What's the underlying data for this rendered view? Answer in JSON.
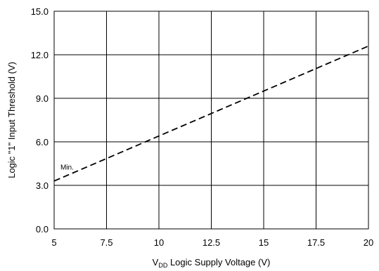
{
  "chart_data": {
    "type": "line",
    "xlabel_main": "V",
    "xlabel_sub": "DD",
    "xlabel_rest": " Logic Supply Voltage (V)",
    "ylabel": "Logic \"1\" Input Threshold (V)",
    "xlim": [
      5,
      20
    ],
    "ylim": [
      0,
      15
    ],
    "x_ticks": [
      5,
      7.5,
      10,
      12.5,
      15,
      17.5,
      20
    ],
    "x_tick_labels": [
      "5",
      "7.5",
      "10",
      "12.5",
      "15",
      "17.5",
      "20"
    ],
    "y_ticks": [
      0,
      3,
      6,
      9,
      12,
      15
    ],
    "y_tick_labels": [
      "0.0",
      "3.0",
      "6.0",
      "9.0",
      "12.0",
      "15.0"
    ],
    "grid": true,
    "series": [
      {
        "name": "Min.",
        "style": "dashed",
        "x": [
          5,
          7.5,
          10,
          12.5,
          15,
          17.5,
          20
        ],
        "y": [
          3.3,
          4.85,
          6.4,
          7.95,
          9.5,
          11.05,
          12.6
        ]
      }
    ],
    "annotations": [
      {
        "text": "Min.",
        "x": 5.3,
        "y": 4.1
      }
    ]
  }
}
